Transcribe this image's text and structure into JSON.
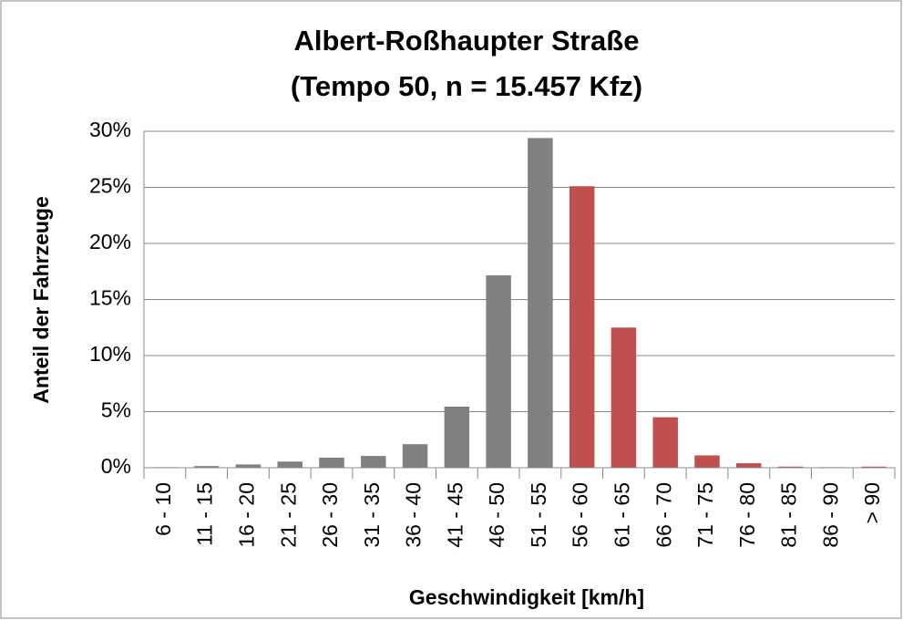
{
  "chart_data": {
    "type": "bar",
    "title": "Albert-Roßhaupter Straße",
    "subtitle": "(Tempo 50, n = 15.457 Kfz)",
    "x_label": "Geschwindigkeit [km/h]",
    "y_label": "Anteil der Fahrzeuge",
    "categories": [
      "6 - 10",
      "11 - 15",
      "16 - 20",
      "21 - 25",
      "26 - 30",
      "31 - 35",
      "36 - 40",
      "41 - 45",
      "46 - 50",
      "51 - 55",
      "56 - 60",
      "61 - 65",
      "66 - 70",
      "71 - 75",
      "76 - 80",
      "81 - 85",
      "86 - 90",
      "> 90"
    ],
    "values": [
      0.05,
      0.15,
      0.3,
      0.55,
      0.9,
      1.05,
      2.1,
      5.45,
      17.15,
      29.4,
      25.1,
      12.5,
      4.5,
      1.1,
      0.4,
      0.1,
      0.05,
      0.1
    ],
    "colors": [
      "#808080",
      "#808080",
      "#808080",
      "#808080",
      "#808080",
      "#808080",
      "#808080",
      "#808080",
      "#808080",
      "#808080",
      "#c0504d",
      "#c0504d",
      "#c0504d",
      "#c0504d",
      "#c0504d",
      "#c0504d",
      "#c0504d",
      "#c0504d"
    ],
    "ylim": [
      0,
      30
    ],
    "yticks": [
      {
        "value": 0,
        "label": "0%"
      },
      {
        "value": 5,
        "label": "5%"
      },
      {
        "value": 10,
        "label": "10%"
      },
      {
        "value": 15,
        "label": "15%"
      },
      {
        "value": 20,
        "label": "20%"
      },
      {
        "value": 25,
        "label": "25%"
      },
      {
        "value": 30,
        "label": "30%"
      }
    ],
    "grid": true
  }
}
